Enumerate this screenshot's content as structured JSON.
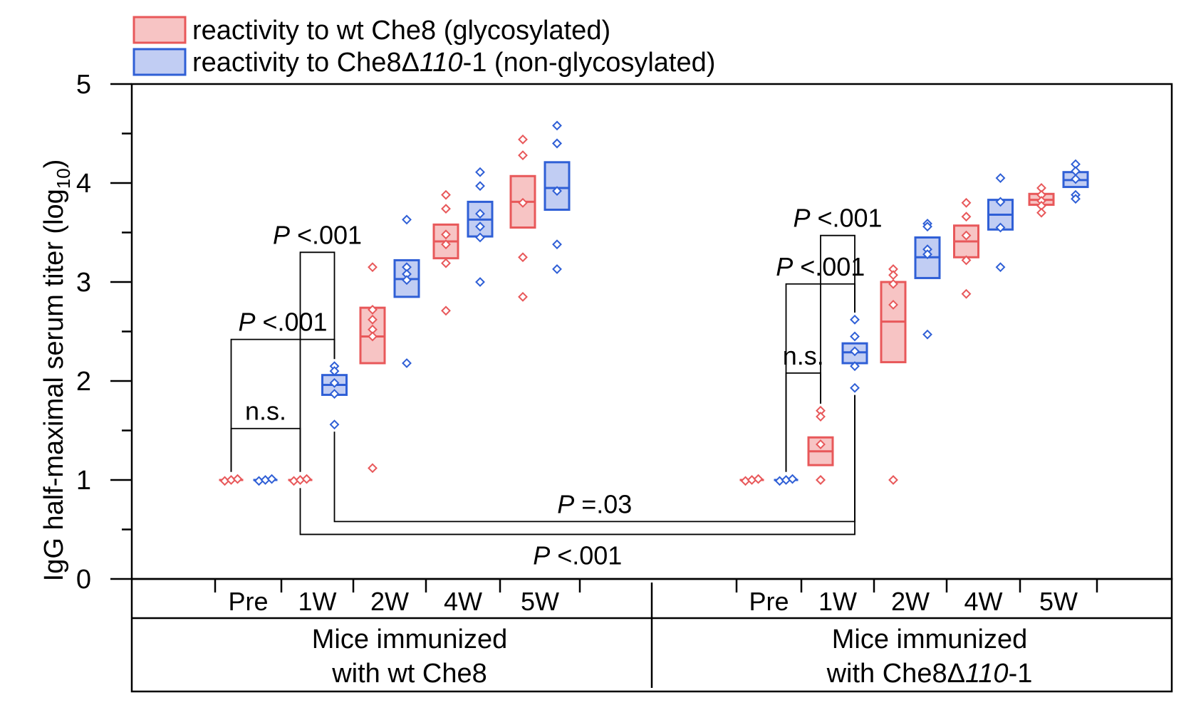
{
  "chart_data": {
    "type": "box",
    "title": "",
    "ylabel": "IgG half-maximal serum titer (log",
    "ylabel_sub": "10",
    "ylabel_close": ")",
    "ylim": [
      0,
      5
    ],
    "yticks": [
      "0",
      "1",
      "2",
      "3",
      "4",
      "5"
    ],
    "legend": {
      "position": "top-left",
      "entries": [
        {
          "name": "reactivity to wt Che8 (glycosylated)",
          "color": "#e8585a",
          "fill": "#f7c4c4"
        },
        {
          "name_pre": "reactivity to Che8Δ",
          "name_it": "110",
          "name_post": "-1 (non-glycosylated)",
          "color": "#2f5fd6",
          "fill": "#c1cdf3"
        }
      ]
    },
    "timepoints": [
      "Pre",
      "1W",
      "2W",
      "4W",
      "5W"
    ],
    "groups": [
      {
        "label_line1": "Mice immunized",
        "label_line2_pre": "with wt Che8",
        "label_line2_it": "",
        "label_line2_post": "",
        "boxes": [
          {
            "series": "red",
            "time": 0,
            "low": 1.0,
            "median": 1.0,
            "high": 1.0,
            "points": [
              0.99,
              1.0,
              1.01
            ]
          },
          {
            "series": "blue",
            "time": 0,
            "low": 1.0,
            "median": 1.0,
            "high": 1.0,
            "points": [
              0.99,
              1.0,
              1.01
            ]
          },
          {
            "series": "red",
            "time": 1,
            "low": 1.0,
            "median": 1.0,
            "high": 1.0,
            "points": [
              0.99,
              1.0,
              1.01
            ]
          },
          {
            "series": "blue",
            "time": 1,
            "low": 1.86,
            "median": 1.96,
            "high": 2.06,
            "points": [
              2.15,
              2.1,
              1.98,
              1.87,
              1.56
            ]
          },
          {
            "series": "red",
            "time": 2,
            "low": 2.18,
            "median": 2.45,
            "high": 2.74,
            "points": [
              3.15,
              2.72,
              2.62,
              2.52,
              2.45,
              1.12
            ]
          },
          {
            "series": "blue",
            "time": 2,
            "low": 2.85,
            "median": 3.03,
            "high": 3.22,
            "points": [
              3.63,
              3.15,
              3.08,
              3.02,
              2.18
            ]
          },
          {
            "series": "red",
            "time": 3,
            "low": 3.24,
            "median": 3.41,
            "high": 3.58,
            "points": [
              3.88,
              3.74,
              3.48,
              3.38,
              3.19,
              2.71
            ]
          },
          {
            "series": "blue",
            "time": 3,
            "low": 3.46,
            "median": 3.63,
            "high": 3.81,
            "points": [
              4.11,
              3.97,
              3.69,
              3.56,
              3.45,
              3.0
            ]
          },
          {
            "series": "red",
            "time": 4,
            "low": 3.55,
            "median": 3.81,
            "high": 4.07,
            "points": [
              4.44,
              4.28,
              3.8,
              3.25,
              2.85
            ]
          },
          {
            "series": "blue",
            "time": 4,
            "low": 3.73,
            "median": 3.95,
            "high": 4.21,
            "points": [
              4.58,
              4.4,
              4.4,
              3.92,
              3.38,
              3.13
            ]
          }
        ]
      },
      {
        "label_line1": "Mice immunized",
        "label_line2_pre": "with Che8Δ",
        "label_line2_it": "110",
        "label_line2_post": "-1",
        "boxes": [
          {
            "series": "red",
            "time": 0,
            "low": 1.0,
            "median": 1.0,
            "high": 1.0,
            "points": [
              0.99,
              1.0,
              1.01
            ]
          },
          {
            "series": "blue",
            "time": 0,
            "low": 1.0,
            "median": 1.0,
            "high": 1.0,
            "points": [
              0.99,
              1.0,
              1.01
            ]
          },
          {
            "series": "red",
            "time": 1,
            "low": 1.15,
            "median": 1.29,
            "high": 1.43,
            "points": [
              1.7,
              1.64,
              1.36,
              1.0,
              1.0
            ]
          },
          {
            "series": "blue",
            "time": 1,
            "low": 2.18,
            "median": 2.29,
            "high": 2.38,
            "points": [
              2.62,
              2.45,
              2.3,
              2.15,
              1.93
            ]
          },
          {
            "series": "red",
            "time": 2,
            "low": 2.19,
            "median": 2.6,
            "high": 3.0,
            "points": [
              3.13,
              3.07,
              2.98,
              2.77,
              1.0
            ]
          },
          {
            "series": "blue",
            "time": 2,
            "low": 3.04,
            "median": 3.25,
            "high": 3.45,
            "points": [
              3.59,
              3.56,
              3.33,
              3.28,
              2.47
            ]
          },
          {
            "series": "red",
            "time": 3,
            "low": 3.25,
            "median": 3.41,
            "high": 3.57,
            "points": [
              3.8,
              3.66,
              3.47,
              3.22,
              2.88
            ]
          },
          {
            "series": "blue",
            "time": 3,
            "low": 3.53,
            "median": 3.68,
            "high": 3.83,
            "points": [
              4.05,
              3.81,
              3.55,
              3.15
            ]
          },
          {
            "series": "red",
            "time": 4,
            "low": 3.78,
            "median": 3.83,
            "high": 3.89,
            "points": [
              3.95,
              3.88,
              3.82,
              3.77,
              3.7
            ]
          },
          {
            "series": "blue",
            "time": 4,
            "low": 3.96,
            "median": 4.03,
            "high": 4.11,
            "points": [
              4.19,
              4.12,
              4.04,
              3.88,
              3.84
            ]
          }
        ]
      }
    ],
    "brackets": [
      {
        "left": [
          0,
          0,
          "red"
        ],
        "right": [
          0,
          1,
          "red"
        ],
        "y": 1.52,
        "label": "n.s."
      },
      {
        "left": [
          0,
          0,
          "red"
        ],
        "right": [
          0,
          1,
          "blue"
        ],
        "y": 2.42,
        "label_it": "P",
        "label": " <.001"
      },
      {
        "left": [
          0,
          1,
          "red"
        ],
        "right": [
          0,
          1,
          "blue"
        ],
        "y": 3.3,
        "label_it": "P",
        "label": " <.001"
      },
      {
        "left": [
          1,
          0,
          "blue"
        ],
        "right": [
          1,
          1,
          "red"
        ],
        "y": 2.08,
        "label": "n.s."
      },
      {
        "left": [
          1,
          0,
          "blue"
        ],
        "right": [
          1,
          1,
          "blue"
        ],
        "y": 2.98,
        "label_it": "P",
        "label": " <.001"
      },
      {
        "left": [
          1,
          1,
          "red"
        ],
        "right": [
          1,
          1,
          "blue"
        ],
        "y": 3.47,
        "label_it": "P",
        "label": " <.001"
      },
      {
        "left": [
          0,
          1,
          "blue"
        ],
        "right": [
          1,
          1,
          "blue"
        ],
        "y": 0.58,
        "label_it": "P",
        "label": " =.03",
        "label_pos": "above"
      },
      {
        "left": [
          0,
          1,
          "red"
        ],
        "right": [
          1,
          1,
          "blue"
        ],
        "y": 0.45,
        "label_it": "P",
        "label": " <.001",
        "label_pos": "below"
      }
    ]
  }
}
